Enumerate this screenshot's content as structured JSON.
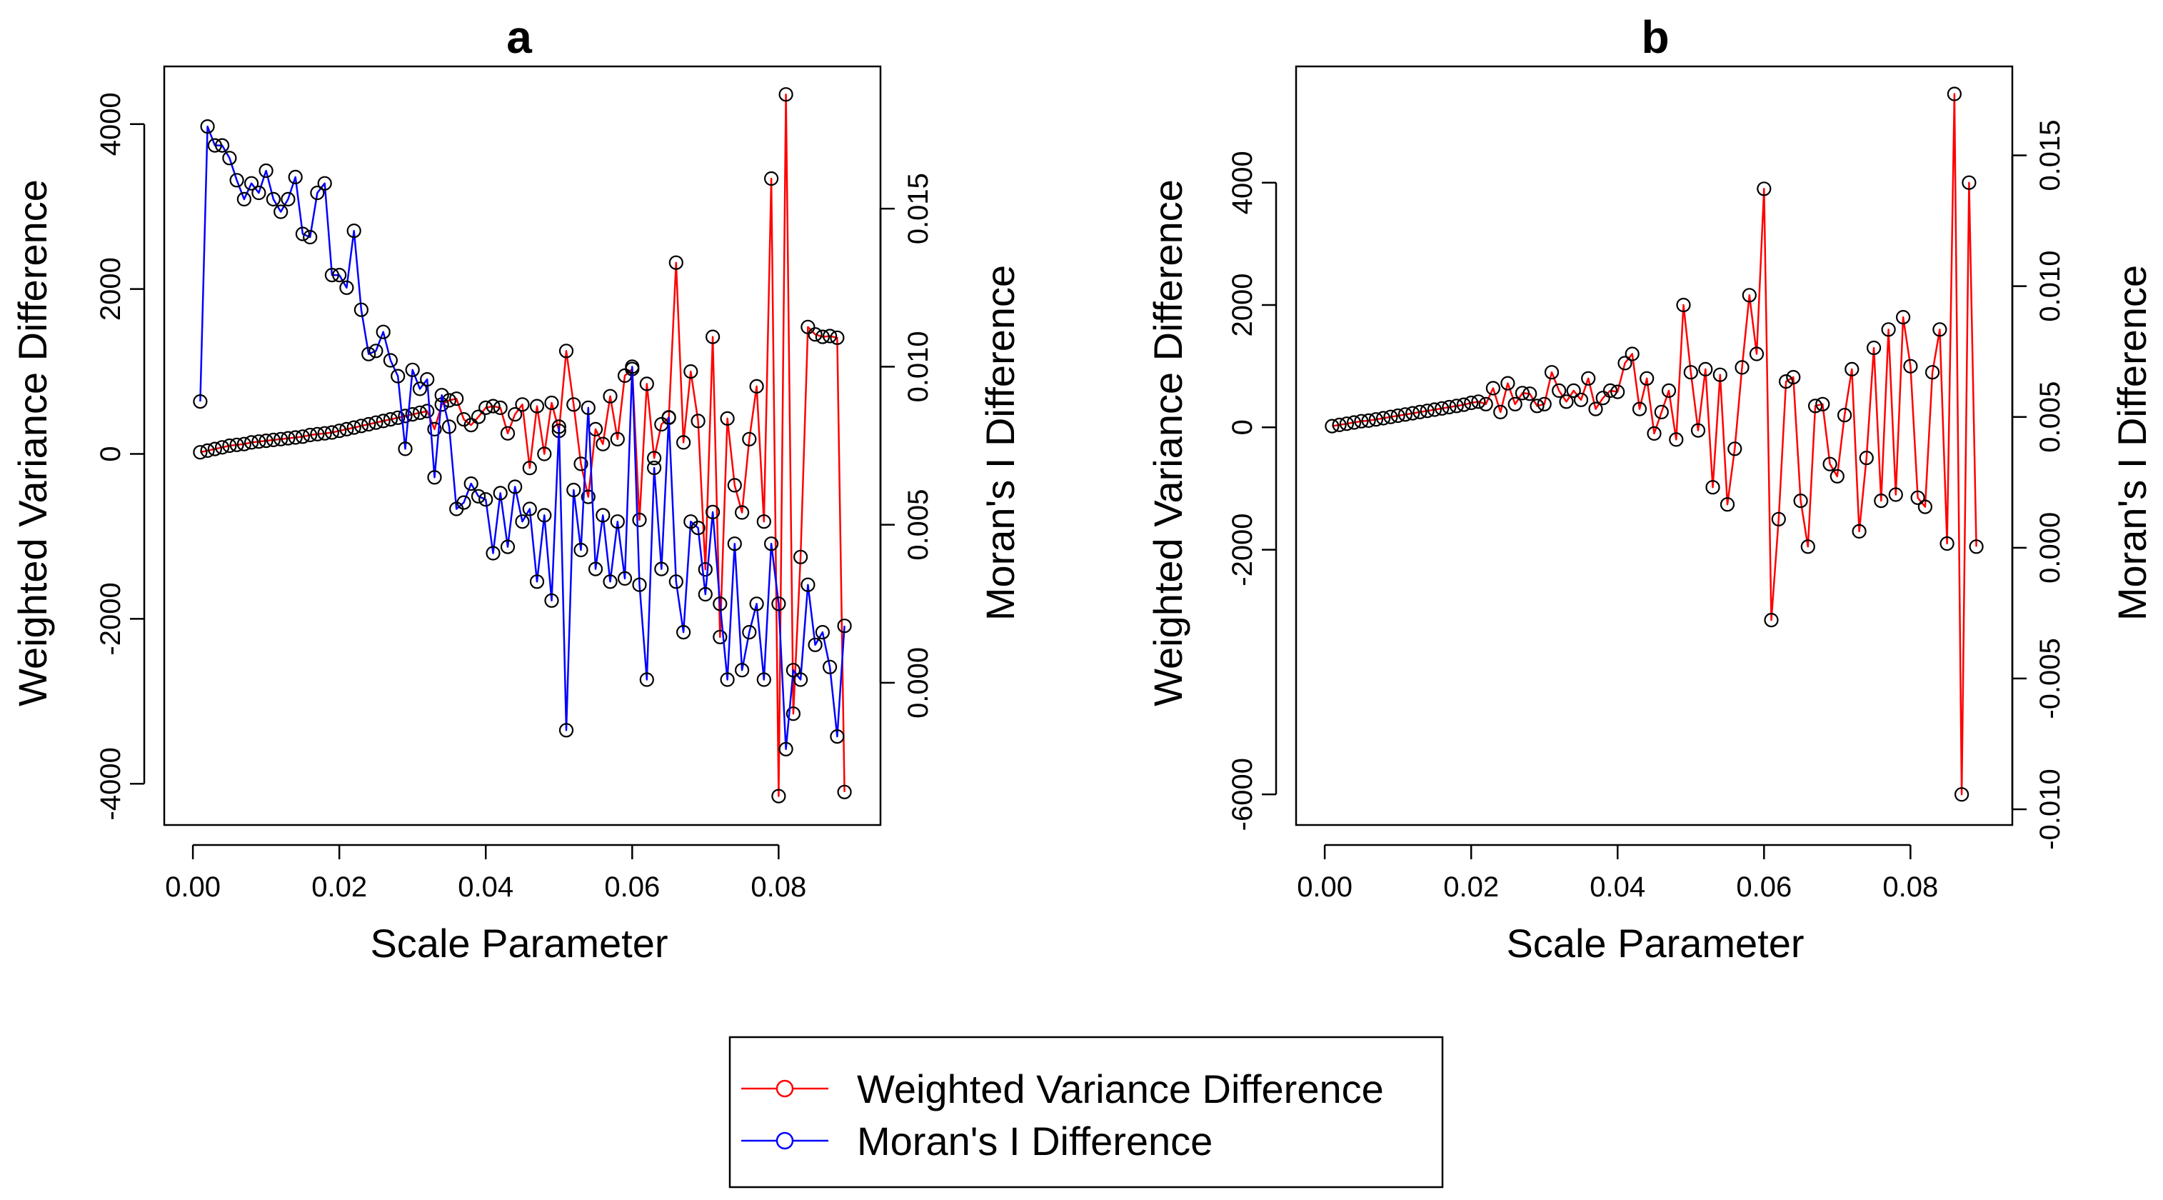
{
  "chart_data": [
    {
      "type": "line",
      "title": "a",
      "xlabel": "Scale Parameter",
      "ylabel": "Weighted Variance Difference",
      "y2label": "Moran's I Difference",
      "xlim": [
        0.0,
        0.09
      ],
      "ylim": [
        -4500,
        4700
      ],
      "y2lim": [
        -0.0045,
        0.0195
      ],
      "xticks": [
        0.0,
        0.02,
        0.04,
        0.06,
        0.08
      ],
      "xtick_labels": [
        "0.00",
        "0.02",
        "0.04",
        "0.06",
        "0.08"
      ],
      "yticks": [
        -4000,
        -2000,
        0,
        2000,
        4000
      ],
      "ytick_labels": [
        "-4000",
        "-2000",
        "0",
        "2000",
        "4000"
      ],
      "y2ticks": [
        0.0,
        0.005,
        0.01,
        0.015
      ],
      "y2tick_labels": [
        "0.000",
        "0.005",
        "0.010",
        "0.015"
      ],
      "x": [
        0.001,
        0.002,
        0.003,
        0.004,
        0.005,
        0.006,
        0.007,
        0.008,
        0.009,
        0.01,
        0.011,
        0.012,
        0.013,
        0.014,
        0.015,
        0.016,
        0.017,
        0.018,
        0.019,
        0.02,
        0.021,
        0.022,
        0.023,
        0.024,
        0.025,
        0.026,
        0.027,
        0.028,
        0.029,
        0.03,
        0.031,
        0.032,
        0.033,
        0.034,
        0.035,
        0.036,
        0.037,
        0.038,
        0.039,
        0.04,
        0.041,
        0.042,
        0.043,
        0.044,
        0.045,
        0.046,
        0.047,
        0.048,
        0.049,
        0.05,
        0.051,
        0.052,
        0.053,
        0.054,
        0.055,
        0.056,
        0.057,
        0.058,
        0.059,
        0.06,
        0.061,
        0.062,
        0.063,
        0.064,
        0.065,
        0.066,
        0.067,
        0.068,
        0.069,
        0.07,
        0.071,
        0.072,
        0.073,
        0.074,
        0.075,
        0.076,
        0.077,
        0.078,
        0.079,
        0.08,
        0.081,
        0.082,
        0.083,
        0.084,
        0.085,
        0.086,
        0.087,
        0.088,
        0.089
      ],
      "series": [
        {
          "name": "Weighted Variance Difference",
          "axis": "left",
          "color": "#ff0000",
          "values": [
            20,
            40,
            60,
            80,
            100,
            110,
            120,
            140,
            150,
            160,
            170,
            180,
            190,
            200,
            210,
            230,
            240,
            250,
            260,
            280,
            300,
            320,
            340,
            360,
            380,
            400,
            420,
            440,
            460,
            480,
            500,
            520,
            300,
            600,
            650,
            670,
            420,
            350,
            450,
            560,
            580,
            560,
            250,
            480,
            600,
            -170,
            580,
            0,
            620,
            280,
            1250,
            600,
            -120,
            -520,
            300,
            120,
            700,
            180,
            950,
            1030,
            -800,
            850,
            -50,
            360,
            440,
            2320,
            140,
            1000,
            400,
            -1400,
            1420,
            -2220,
            430,
            -380,
            -710,
            180,
            820,
            -820,
            3340,
            -4150,
            4360,
            -3150,
            -1250,
            1540,
            1450,
            1420,
            1430,
            1410,
            -4100
          ]
        },
        {
          "name": "Moran's I Difference",
          "axis": "right",
          "color": "#0000ff",
          "values": [
            0.0089,
            0.0176,
            0.017,
            0.017,
            0.0166,
            0.0159,
            0.0153,
            0.0158,
            0.0155,
            0.0162,
            0.0153,
            0.0149,
            0.0153,
            0.016,
            0.0142,
            0.0141,
            0.0155,
            0.0158,
            0.0129,
            0.0129,
            0.0125,
            0.0143,
            0.0118,
            0.0104,
            0.0105,
            0.0111,
            0.0102,
            0.0097,
            0.0074,
            0.0099,
            0.0093,
            0.0096,
            0.0065,
            0.0091,
            0.0081,
            0.0055,
            0.0057,
            0.0063,
            0.0059,
            0.0058,
            0.0041,
            0.006,
            0.0043,
            0.0062,
            0.0051,
            0.0055,
            0.0032,
            0.0053,
            0.0026,
            0.0081,
            -0.0015,
            0.0061,
            0.0042,
            0.0087,
            0.0036,
            0.0053,
            0.0032,
            0.0051,
            0.0033,
            0.01,
            0.0031,
            0.0001,
            0.0068,
            0.0036,
            0.0084,
            0.0032,
            0.0016,
            0.0051,
            0.0049,
            0.0028,
            0.0054,
            0.0025,
            0.0001,
            0.0044,
            0.0004,
            0.0016,
            0.0025,
            0.0001,
            0.0044,
            0.0025,
            -0.0021,
            0.0004,
            0.0001,
            0.0031,
            0.0012,
            0.0016,
            0.0005,
            -0.0017,
            0.0018
          ]
        }
      ]
    },
    {
      "type": "line",
      "title": "b",
      "xlabel": "Scale Parameter",
      "ylabel": "Weighted Variance Difference",
      "y2label": "Moran's I Difference",
      "xlim": [
        0.0,
        0.09
      ],
      "ylim": [
        -6500,
        5900
      ],
      "y2lim": [
        -0.0106,
        0.0184
      ],
      "xticks": [
        0.0,
        0.02,
        0.04,
        0.06,
        0.08
      ],
      "xtick_labels": [
        "0.00",
        "0.02",
        "0.04",
        "0.06",
        "0.08"
      ],
      "yticks": [
        -6000,
        -2000,
        0,
        2000,
        4000
      ],
      "ytick_labels": [
        "-6000",
        "-2000",
        "0",
        "2000",
        "4000"
      ],
      "y2ticks": [
        -0.01,
        -0.005,
        0.0,
        0.005,
        0.01,
        0.015
      ],
      "y2tick_labels": [
        "-0.010",
        "-0.005",
        "0.000",
        "0.005",
        "0.010",
        "0.015"
      ],
      "x": [
        0.001,
        0.002,
        0.003,
        0.004,
        0.005,
        0.006,
        0.007,
        0.008,
        0.009,
        0.01,
        0.011,
        0.012,
        0.013,
        0.014,
        0.015,
        0.016,
        0.017,
        0.018,
        0.019,
        0.02,
        0.021,
        0.022,
        0.023,
        0.024,
        0.025,
        0.026,
        0.027,
        0.028,
        0.029,
        0.03,
        0.031,
        0.032,
        0.033,
        0.034,
        0.035,
        0.036,
        0.037,
        0.038,
        0.039,
        0.04,
        0.041,
        0.042,
        0.043,
        0.044,
        0.045,
        0.046,
        0.047,
        0.048,
        0.049,
        0.05,
        0.051,
        0.052,
        0.053,
        0.054,
        0.055,
        0.056,
        0.057,
        0.058,
        0.059,
        0.06,
        0.061,
        0.062,
        0.063,
        0.064,
        0.065,
        0.066,
        0.067,
        0.068,
        0.069,
        0.07,
        0.071,
        0.072,
        0.073,
        0.074,
        0.075,
        0.076,
        0.077,
        0.078,
        0.079,
        0.08,
        0.081,
        0.082,
        0.083,
        0.084,
        0.085,
        0.086,
        0.087,
        0.088,
        0.089
      ],
      "series": [
        {
          "name": "Weighted Variance Difference",
          "axis": "left",
          "color": "#ff0000",
          "values": [
            20,
            40,
            60,
            80,
            100,
            110,
            130,
            150,
            170,
            190,
            210,
            230,
            250,
            270,
            290,
            310,
            330,
            350,
            370,
            400,
            420,
            380,
            640,
            250,
            720,
            380,
            560,
            550,
            350,
            380,
            900,
            600,
            420,
            600,
            450,
            800,
            300,
            480,
            600,
            580,
            1050,
            1200,
            300,
            800,
            -100,
            250,
            600,
            -200,
            2000,
            900,
            -50,
            950,
            -980,
            860,
            -1260,
            -350,
            980,
            2160,
            1200,
            3900,
            -3150,
            -1500,
            750,
            820,
            -1200,
            -1950,
            350,
            380,
            -600,
            -800,
            200,
            950,
            -1700,
            -500,
            1300,
            -1200,
            1600,
            -1100,
            1800,
            1000,
            -1150,
            -1300,
            900,
            1600,
            -1900,
            5450,
            -6000,
            4000,
            -1950
          ]
        }
      ]
    }
  ],
  "legend": {
    "items": [
      {
        "label": "Weighted Variance Difference",
        "color": "#ff0000"
      },
      {
        "label": "Moran's I Difference",
        "color": "#0000ff"
      }
    ]
  }
}
